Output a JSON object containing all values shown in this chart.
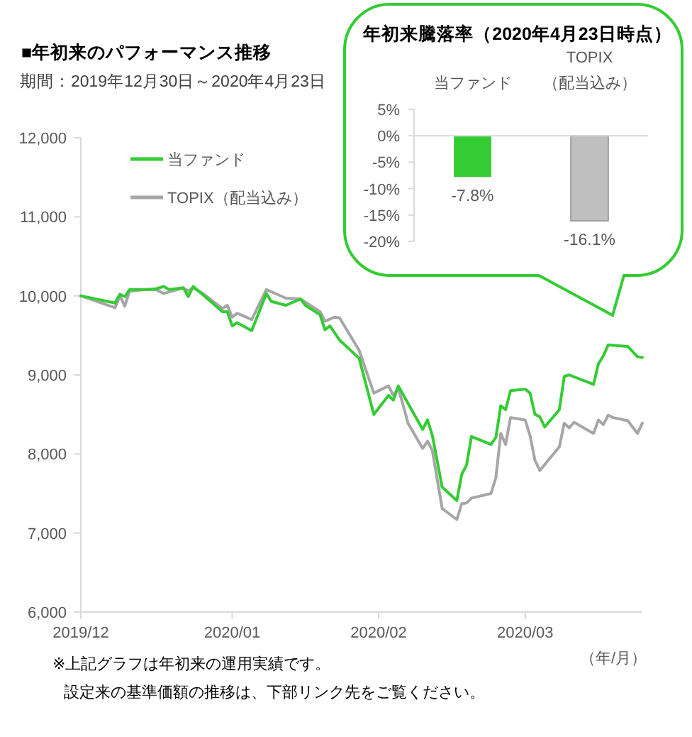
{
  "chart_data": [
    {
      "type": "line",
      "title": "■年初来のパフォーマンス推移",
      "subtitle": "期間：2019年12月30日～2020年4月23日",
      "xlabel": "（年/月）",
      "annotations": [
        "※上記グラフは年初来の運用実績です。",
        "設定来の基準価額の推移は、下部リンク先をご覧ください。"
      ],
      "xlim": [
        "2019-12-30",
        "2020-04-23"
      ],
      "xticks": [
        {
          "value": "2019-12-30",
          "label": "2019/12"
        },
        {
          "value": "2020-01-30",
          "label": "2020/01"
        },
        {
          "value": "2020-02-29",
          "label": "2020/02"
        },
        {
          "value": "2020-03-30",
          "label": "2020/03"
        }
      ],
      "ylim": [
        6000,
        12000
      ],
      "yticks": [
        {
          "value": 6000,
          "label": "6,000"
        },
        {
          "value": 7000,
          "label": "7,000"
        },
        {
          "value": 8000,
          "label": "8,000"
        },
        {
          "value": 9000,
          "label": "9,000"
        },
        {
          "value": 10000,
          "label": "10,000"
        },
        {
          "value": 11000,
          "label": "11,000"
        },
        {
          "value": 12000,
          "label": "12,000"
        }
      ],
      "legend": "top left",
      "series": [
        {
          "name": "当ファンド",
          "color": "#33cc33",
          "x": [
            "2019-12-30",
            "2020-01-06",
            "2020-01-07",
            "2020-01-08",
            "2020-01-09",
            "2020-01-14",
            "2020-01-16",
            "2020-01-17",
            "2020-01-20",
            "2020-01-21",
            "2020-01-22",
            "2020-01-28",
            "2020-01-29",
            "2020-01-30",
            "2020-01-31",
            "2020-02-03",
            "2020-02-06",
            "2020-02-07",
            "2020-02-10",
            "2020-02-13",
            "2020-02-14",
            "2020-02-17",
            "2020-02-18",
            "2020-02-19",
            "2020-02-21",
            "2020-02-25",
            "2020-02-28",
            "2020-03-02",
            "2020-03-03",
            "2020-03-04",
            "2020-03-09",
            "2020-03-10",
            "2020-03-11",
            "2020-03-13",
            "2020-03-16",
            "2020-03-17",
            "2020-03-18",
            "2020-03-19",
            "2020-03-23",
            "2020-03-24",
            "2020-03-25",
            "2020-03-26",
            "2020-03-27",
            "2020-03-30",
            "2020-03-31",
            "2020-04-01",
            "2020-04-02",
            "2020-04-03",
            "2020-04-06",
            "2020-04-07",
            "2020-04-08",
            "2020-04-13",
            "2020-04-14",
            "2020-04-15",
            "2020-04-16",
            "2020-04-20",
            "2020-04-22",
            "2020-04-23"
          ],
          "values": [
            10000,
            9910,
            10020,
            9990,
            10080,
            10080,
            10120,
            10080,
            10100,
            9990,
            10120,
            9800,
            9800,
            9620,
            9660,
            9560,
            10030,
            9930,
            9880,
            9960,
            9880,
            9760,
            9570,
            9620,
            9440,
            9210,
            8500,
            8740,
            8680,
            8860,
            8310,
            8430,
            8230,
            7580,
            7410,
            7740,
            7860,
            8220,
            8120,
            8210,
            8610,
            8560,
            8800,
            8820,
            8770,
            8500,
            8470,
            8340,
            8560,
            8980,
            9000,
            8880,
            9140,
            9240,
            9380,
            9360,
            9230,
            9220
          ]
        },
        {
          "name": "TOPIX（配当込み）",
          "color": "#a6a6a6",
          "x": [
            "2019-12-30",
            "2020-01-06",
            "2020-01-07",
            "2020-01-08",
            "2020-01-09",
            "2020-01-14",
            "2020-01-16",
            "2020-01-20",
            "2020-01-21",
            "2020-01-22",
            "2020-01-24",
            "2020-01-28",
            "2020-01-29",
            "2020-01-30",
            "2020-01-31",
            "2020-02-03",
            "2020-02-06",
            "2020-02-10",
            "2020-02-13",
            "2020-02-17",
            "2020-02-18",
            "2020-02-20",
            "2020-02-21",
            "2020-02-25",
            "2020-02-28",
            "2020-03-02",
            "2020-03-03",
            "2020-03-04",
            "2020-03-05",
            "2020-03-06",
            "2020-03-09",
            "2020-03-10",
            "2020-03-11",
            "2020-03-13",
            "2020-03-16",
            "2020-03-17",
            "2020-03-18",
            "2020-03-19",
            "2020-03-23",
            "2020-03-24",
            "2020-03-25",
            "2020-03-26",
            "2020-03-27",
            "2020-03-30",
            "2020-03-31",
            "2020-04-01",
            "2020-04-02",
            "2020-04-06",
            "2020-04-07",
            "2020-04-08",
            "2020-04-09",
            "2020-04-13",
            "2020-04-14",
            "2020-04-15",
            "2020-04-16",
            "2020-04-17",
            "2020-04-20",
            "2020-04-22",
            "2020-04-23"
          ],
          "values": [
            10000,
            9850,
            10000,
            9870,
            10060,
            10090,
            10030,
            10100,
            10060,
            10100,
            10030,
            9840,
            9880,
            9730,
            9780,
            9700,
            10080,
            9970,
            9960,
            9800,
            9680,
            9730,
            9720,
            9310,
            8770,
            8860,
            8740,
            8830,
            8620,
            8390,
            8070,
            8160,
            8040,
            7310,
            7170,
            7370,
            7380,
            7440,
            7500,
            7700,
            8260,
            8120,
            8460,
            8430,
            8230,
            7920,
            7790,
            8090,
            8390,
            8330,
            8400,
            8260,
            8430,
            8370,
            8490,
            8460,
            8420,
            8260,
            8390
          ]
        }
      ]
    },
    {
      "type": "bar",
      "title": "年初来騰落率（2020年4月23日時点）",
      "categories": [
        "当ファンド",
        "TOPIX\n（配当込み）"
      ],
      "values": [
        -7.8,
        -16.1
      ],
      "colors": [
        "#33cc33",
        "#bfbfbf"
      ],
      "value_labels": [
        "-7.8%",
        "-16.1%"
      ],
      "ylim": [
        -20,
        5
      ],
      "yticks": [
        {
          "value": 5,
          "label": "5%"
        },
        {
          "value": 0,
          "label": "0%"
        },
        {
          "value": -5,
          "label": "-5%"
        },
        {
          "value": -10,
          "label": "-10%"
        },
        {
          "value": -15,
          "label": "-15%"
        },
        {
          "value": -20,
          "label": "-20%"
        }
      ]
    }
  ]
}
